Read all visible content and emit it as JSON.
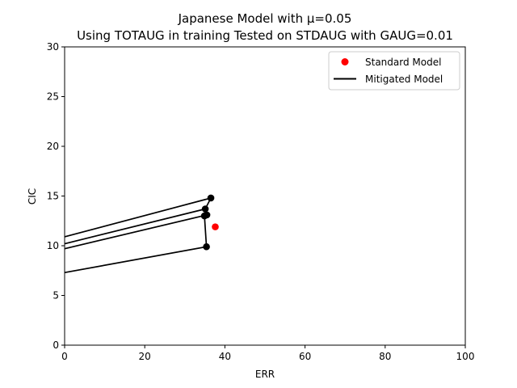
{
  "chart_data": {
    "type": "scatter",
    "title": [
      "Japanese Model with μ=0.05",
      "Using TOTAUG in training Tested on STDAUG with GAUG=0.01"
    ],
    "xlabel": "ERR",
    "ylabel": "CIC",
    "xlim": [
      0,
      100
    ],
    "ylim": [
      0,
      30
    ],
    "xticks": [
      0,
      20,
      40,
      60,
      80,
      100
    ],
    "yticks": [
      0,
      5,
      10,
      15,
      20,
      25,
      30
    ],
    "grid": false,
    "legend_position": "top-right",
    "series": [
      {
        "name": "Standard Model",
        "kind": "scatter",
        "color": "#ff0000",
        "points": [
          [
            37.6,
            11.9
          ]
        ]
      },
      {
        "name": "Mitigated Model",
        "kind": "line",
        "color": "#000000",
        "lines": [
          [
            [
              0,
              10.9
            ],
            [
              36.5,
              14.8
            ]
          ],
          [
            [
              0,
              10.2
            ],
            [
              35.1,
              13.7
            ]
          ],
          [
            [
              0,
              9.7
            ],
            [
              35.5,
              13.1
            ]
          ],
          [
            [
              0,
              7.3
            ],
            [
              35.4,
              9.9
            ]
          ],
          [
            [
              36.5,
              14.8
            ],
            [
              35.1,
              13.7
            ],
            [
              35.5,
              13.1
            ],
            [
              34.9,
              13.0
            ],
            [
              35.4,
              9.9
            ]
          ]
        ],
        "points": [
          [
            36.5,
            14.8
          ],
          [
            35.1,
            13.7
          ],
          [
            35.5,
            13.1
          ],
          [
            34.9,
            13.0
          ],
          [
            35.4,
            9.9
          ]
        ]
      }
    ]
  }
}
